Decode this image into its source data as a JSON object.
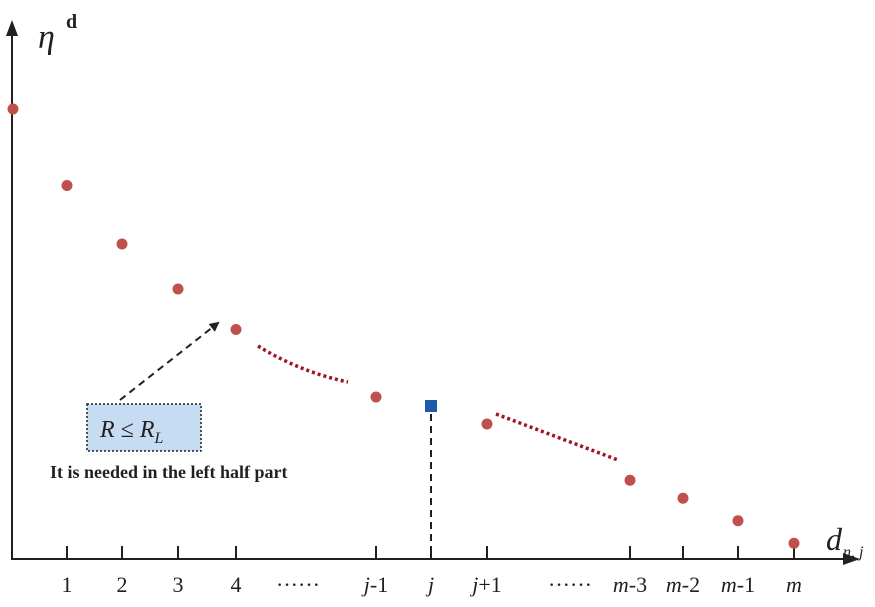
{
  "chart_data": {
    "type": "scatter",
    "ylabel": {
      "symbol": "η",
      "superscript": "d"
    },
    "xlabel": {
      "symbol": "d",
      "subscript": "n, j"
    },
    "categories": [
      "1",
      "2",
      "3",
      "4",
      "······",
      "j-1",
      "j",
      "j+1",
      "······",
      "m-3",
      "m-2",
      "m-1",
      "m"
    ],
    "tick_labels": [
      {
        "italic": "",
        "rest": "1"
      },
      {
        "italic": "",
        "rest": "2"
      },
      {
        "italic": "",
        "rest": "3"
      },
      {
        "italic": "",
        "rest": "4"
      },
      {
        "italic": "",
        "rest": "······"
      },
      {
        "italic": "j",
        "rest": "-1"
      },
      {
        "italic": "j",
        "rest": ""
      },
      {
        "italic": "j",
        "rest": "+1"
      },
      {
        "italic": "",
        "rest": "······"
      },
      {
        "italic": "m",
        "rest": "-3"
      },
      {
        "italic": "m",
        "rest": "-2"
      },
      {
        "italic": "m",
        "rest": "-1"
      },
      {
        "italic": "m",
        "rest": ""
      }
    ],
    "points": [
      {
        "x": "0",
        "y": 1.0
      },
      {
        "x": "1",
        "y": 0.83
      },
      {
        "x": "2",
        "y": 0.7
      },
      {
        "x": "3",
        "y": 0.6
      },
      {
        "x": "4",
        "y": 0.51
      },
      {
        "x": "j-1",
        "y": 0.36
      },
      {
        "x": "j+1",
        "y": 0.3
      },
      {
        "x": "m-3",
        "y": 0.175
      },
      {
        "x": "m-2",
        "y": 0.135
      },
      {
        "x": "m-1",
        "y": 0.085
      },
      {
        "x": "m",
        "y": 0.035
      }
    ],
    "highlight": {
      "x": "j",
      "y": 0.34,
      "marker": "square",
      "color": "#1f5aa8"
    },
    "point_color": "#c0504d",
    "continuation_color": "#a0141e",
    "annotation": {
      "formula_main": "R ≤ R",
      "formula_sub": "L",
      "text": "It is needed in the left half part",
      "box_fill": "#c6dcf2"
    }
  }
}
